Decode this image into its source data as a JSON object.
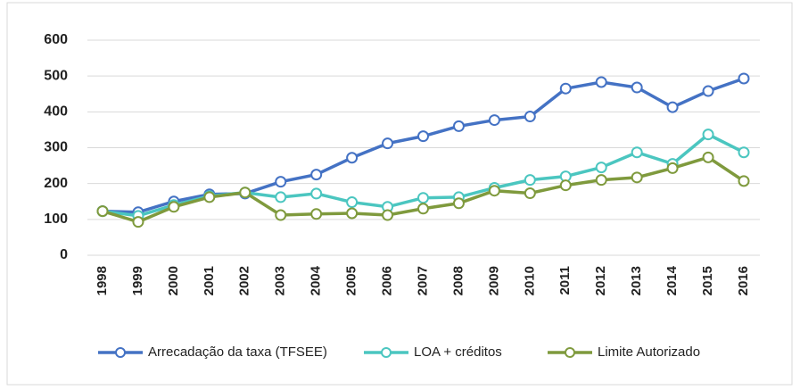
{
  "chart_data": {
    "type": "line",
    "categories": [
      "1998",
      "1999",
      "2000",
      "2001",
      "2002",
      "2003",
      "2004",
      "2005",
      "2006",
      "2007",
      "2008",
      "2009",
      "2010",
      "2011",
      "2012",
      "2013",
      "2014",
      "2015",
      "2016"
    ],
    "series": [
      {
        "name": "Arrecadação da taxa (TFSEE)",
        "color": "#4472c4",
        "values": [
          123,
          120,
          150,
          170,
          172,
          205,
          225,
          272,
          312,
          332,
          360,
          377,
          387,
          465,
          483,
          468,
          413,
          458,
          493
        ]
      },
      {
        "name": "LOA + créditos",
        "color": "#4bc6c0",
        "values": [
          123,
          110,
          140,
          165,
          175,
          162,
          172,
          148,
          135,
          160,
          162,
          188,
          210,
          220,
          245,
          287,
          255,
          337,
          287
        ]
      },
      {
        "name": "Limite Autorizado",
        "color": "#7f9a3d",
        "values": [
          123,
          93,
          135,
          162,
          175,
          112,
          115,
          117,
          112,
          130,
          145,
          180,
          173,
          195,
          210,
          217,
          243,
          273,
          207
        ]
      }
    ],
    "ylim": [
      0,
      600
    ],
    "yticks": [
      0,
      100,
      200,
      300,
      400,
      500,
      600
    ],
    "grid": true,
    "legend": "bottom"
  }
}
